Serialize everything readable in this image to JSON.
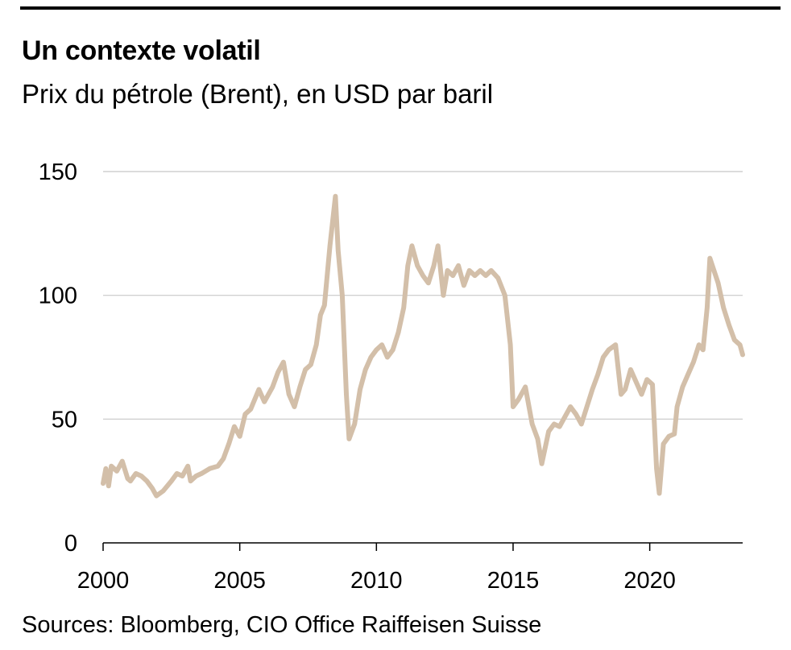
{
  "header": {
    "title": "Un contexte volatil",
    "subtitle": "Prix du pétrole (Brent), en USD par baril"
  },
  "footer": {
    "source": "Sources: Bloomberg, CIO Office Raiffeisen Suisse"
  },
  "chart_data": {
    "type": "line",
    "title": "Un contexte volatil",
    "subtitle": "Prix du pétrole (Brent), en USD par baril",
    "xlabel": "",
    "ylabel": "",
    "xlim": [
      2000,
      2023.4
    ],
    "ylim": [
      0,
      150
    ],
    "x_ticks": [
      "2000",
      "2005",
      "2010",
      "2015",
      "2020"
    ],
    "y_ticks": [
      "0",
      "50",
      "100",
      "150"
    ],
    "grid": "horizontal",
    "line_color": "#d3bfa9",
    "series": [
      {
        "name": "",
        "x": [
          2000.0,
          2000.1,
          2000.2,
          2000.3,
          2000.5,
          2000.7,
          2000.9,
          2001.0,
          2001.2,
          2001.4,
          2001.6,
          2001.8,
          2001.95,
          2002.2,
          2002.5,
          2002.7,
          2002.9,
          2003.1,
          2003.2,
          2003.4,
          2003.6,
          2003.9,
          2004.2,
          2004.4,
          2004.6,
          2004.8,
          2005.0,
          2005.2,
          2005.4,
          2005.7,
          2005.9,
          2006.2,
          2006.4,
          2006.6,
          2006.8,
          2007.0,
          2007.2,
          2007.4,
          2007.6,
          2007.8,
          2007.95,
          2008.1,
          2008.3,
          2008.5,
          2008.6,
          2008.75,
          2008.9,
          2009.0,
          2009.2,
          2009.4,
          2009.6,
          2009.8,
          2010.0,
          2010.2,
          2010.4,
          2010.6,
          2010.8,
          2011.0,
          2011.15,
          2011.3,
          2011.5,
          2011.7,
          2011.9,
          2012.1,
          2012.25,
          2012.45,
          2012.6,
          2012.8,
          2013.0,
          2013.2,
          2013.4,
          2013.6,
          2013.8,
          2014.0,
          2014.2,
          2014.45,
          2014.7,
          2014.9,
          2015.0,
          2015.2,
          2015.45,
          2015.7,
          2015.9,
          2016.05,
          2016.3,
          2016.5,
          2016.7,
          2016.9,
          2017.1,
          2017.3,
          2017.5,
          2017.7,
          2017.9,
          2018.1,
          2018.3,
          2018.5,
          2018.75,
          2018.95,
          2019.1,
          2019.3,
          2019.5,
          2019.7,
          2019.9,
          2020.1,
          2020.25,
          2020.35,
          2020.5,
          2020.7,
          2020.9,
          2021.0,
          2021.2,
          2021.4,
          2021.6,
          2021.8,
          2021.95,
          2022.1,
          2022.2,
          2022.35,
          2022.5,
          2022.7,
          2022.9,
          2023.1,
          2023.3,
          2023.4
        ],
        "y": [
          24,
          30,
          23,
          31,
          29,
          33,
          26,
          25,
          28,
          27,
          25,
          22,
          19,
          21,
          25,
          28,
          27,
          31,
          25,
          27,
          28,
          30,
          31,
          34,
          40,
          47,
          43,
          52,
          54,
          62,
          57,
          63,
          69,
          73,
          60,
          55,
          63,
          70,
          72,
          80,
          92,
          96,
          120,
          140,
          118,
          100,
          60,
          42,
          48,
          62,
          70,
          75,
          78,
          80,
          75,
          78,
          85,
          95,
          112,
          120,
          112,
          108,
          105,
          112,
          120,
          100,
          110,
          108,
          112,
          104,
          110,
          108,
          110,
          108,
          110,
          107,
          100,
          80,
          55,
          58,
          63,
          48,
          42,
          32,
          45,
          48,
          47,
          51,
          55,
          52,
          48,
          55,
          62,
          68,
          75,
          78,
          80,
          60,
          62,
          70,
          65,
          60,
          66,
          64,
          30,
          20,
          40,
          43,
          44,
          55,
          63,
          68,
          73,
          80,
          78,
          95,
          115,
          110,
          105,
          95,
          88,
          82,
          80,
          76
        ]
      }
    ]
  }
}
